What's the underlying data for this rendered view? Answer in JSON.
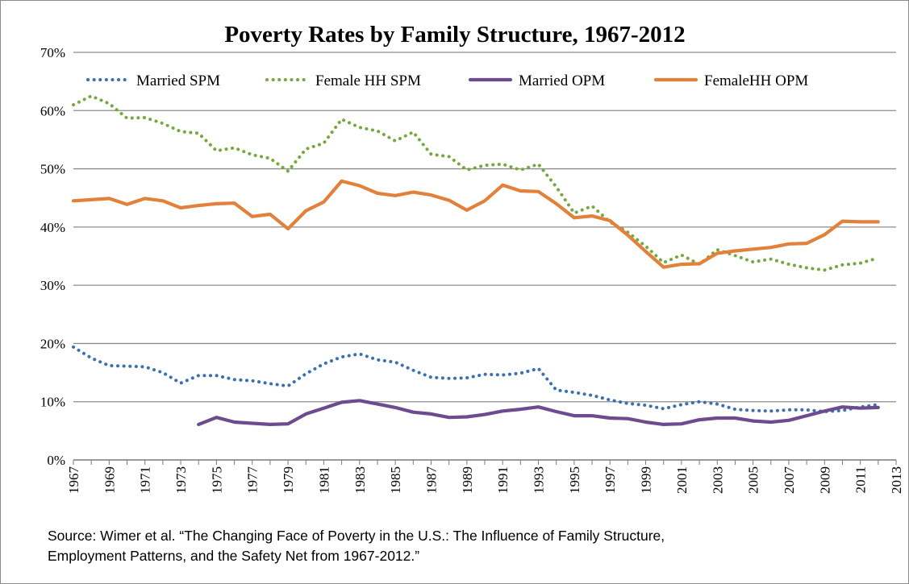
{
  "chart_data": {
    "type": "line",
    "title": "Poverty Rates by Family Structure, 1967-2012",
    "xlabel": "",
    "ylabel": "",
    "ylim": [
      0,
      70
    ],
    "yticks": [
      0,
      10,
      20,
      30,
      40,
      50,
      60,
      70
    ],
    "ytick_labels": [
      "0%",
      "10%",
      "20%",
      "30%",
      "40%",
      "50%",
      "60%",
      "70%"
    ],
    "xlim": [
      1967,
      2013
    ],
    "xticks": [
      1967,
      1969,
      1971,
      1973,
      1975,
      1977,
      1979,
      1981,
      1983,
      1985,
      1987,
      1989,
      1991,
      1993,
      1995,
      1997,
      1999,
      2001,
      2003,
      2005,
      2007,
      2009,
      2011,
      2013
    ],
    "grid": "horizontal",
    "legend_position": "top",
    "series": [
      {
        "name": "Married SPM",
        "style": "dotted",
        "color": "#3a6fb0",
        "x": [
          1967,
          1968,
          1969,
          1970,
          1971,
          1972,
          1973,
          1974,
          1975,
          1976,
          1977,
          1978,
          1979,
          1980,
          1981,
          1982,
          1983,
          1984,
          1985,
          1986,
          1987,
          1988,
          1989,
          1990,
          1991,
          1992,
          1993,
          1994,
          1995,
          1996,
          1997,
          1998,
          1999,
          2000,
          2001,
          2002,
          2003,
          2004,
          2005,
          2006,
          2007,
          2008,
          2009,
          2010,
          2011,
          2012
        ],
        "values": [
          19.4,
          17.5,
          16.2,
          16.1,
          16.0,
          15.0,
          13.2,
          14.5,
          14.5,
          13.8,
          13.6,
          13.1,
          12.7,
          14.8,
          16.5,
          17.7,
          18.2,
          17.2,
          16.8,
          15.4,
          14.2,
          14.0,
          14.1,
          14.7,
          14.6,
          14.9,
          15.7,
          12.0,
          11.6,
          11.1,
          10.3,
          9.7,
          9.4,
          8.8,
          9.5,
          10.0,
          9.6,
          8.7,
          8.5,
          8.4,
          8.6,
          8.6,
          8.3,
          8.5,
          9.1,
          9.5
        ]
      },
      {
        "name": "Female HH SPM",
        "style": "dotted",
        "color": "#77a83f",
        "x": [
          1967,
          1968,
          1969,
          1970,
          1971,
          1972,
          1973,
          1974,
          1975,
          1976,
          1977,
          1978,
          1979,
          1980,
          1981,
          1982,
          1983,
          1984,
          1985,
          1986,
          1987,
          1988,
          1989,
          1990,
          1991,
          1992,
          1993,
          1994,
          1995,
          1996,
          1997,
          1998,
          1999,
          2000,
          2001,
          2002,
          2003,
          2004,
          2005,
          2006,
          2007,
          2008,
          2009,
          2010,
          2011,
          2012
        ],
        "values": [
          61.0,
          62.5,
          61.2,
          58.7,
          58.8,
          57.8,
          56.4,
          56.1,
          53.1,
          53.6,
          52.4,
          51.8,
          49.6,
          53.4,
          54.4,
          58.5,
          57.1,
          56.5,
          54.8,
          56.3,
          52.5,
          52.1,
          49.8,
          50.6,
          50.8,
          49.8,
          50.8,
          46.9,
          42.4,
          43.6,
          40.9,
          39.1,
          36.7,
          33.9,
          35.2,
          33.6,
          36.1,
          35.1,
          34.0,
          34.5,
          33.6,
          33.0,
          32.6,
          33.5,
          33.8,
          34.7
        ]
      },
      {
        "name": "Married OPM",
        "style": "solid",
        "color": "#6d4b8f",
        "x": [
          1974,
          1975,
          1976,
          1977,
          1978,
          1979,
          1980,
          1981,
          1982,
          1983,
          1984,
          1985,
          1986,
          1987,
          1988,
          1989,
          1990,
          1991,
          1992,
          1993,
          1994,
          1995,
          1996,
          1997,
          1998,
          1999,
          2000,
          2001,
          2002,
          2003,
          2004,
          2005,
          2006,
          2007,
          2008,
          2009,
          2010,
          2011,
          2012
        ],
        "values": [
          6.1,
          7.3,
          6.5,
          6.3,
          6.1,
          6.2,
          7.9,
          8.9,
          9.9,
          10.2,
          9.6,
          9.0,
          8.2,
          7.9,
          7.3,
          7.4,
          7.8,
          8.4,
          8.7,
          9.1,
          8.3,
          7.6,
          7.6,
          7.2,
          7.1,
          6.5,
          6.1,
          6.2,
          6.9,
          7.2,
          7.2,
          6.7,
          6.5,
          6.8,
          7.6,
          8.4,
          9.1,
          8.9,
          9.0
        ]
      },
      {
        "name": "FemaleHH OPM",
        "style": "solid",
        "color": "#e1813b",
        "x": [
          1967,
          1968,
          1969,
          1970,
          1971,
          1972,
          1973,
          1974,
          1975,
          1976,
          1977,
          1978,
          1979,
          1980,
          1981,
          1982,
          1983,
          1984,
          1985,
          1986,
          1987,
          1988,
          1989,
          1990,
          1991,
          1992,
          1993,
          1994,
          1995,
          1996,
          1997,
          1998,
          1999,
          2000,
          2001,
          2002,
          2003,
          2004,
          2005,
          2006,
          2007,
          2008,
          2009,
          2010,
          2011,
          2012
        ],
        "values": [
          44.5,
          44.7,
          44.9,
          43.9,
          44.9,
          44.5,
          43.3,
          43.7,
          44.0,
          44.1,
          41.8,
          42.2,
          39.7,
          42.8,
          44.3,
          47.9,
          47.1,
          45.8,
          45.4,
          46.0,
          45.5,
          44.6,
          42.9,
          44.5,
          47.2,
          46.2,
          46.1,
          44.0,
          41.6,
          41.9,
          41.1,
          38.6,
          35.8,
          33.1,
          33.6,
          33.7,
          35.5,
          35.9,
          36.2,
          36.5,
          37.1,
          37.2,
          38.7,
          41.0,
          40.9,
          40.9
        ]
      }
    ]
  },
  "source_note": {
    "line1": "Source: Wimer et al. “The Changing Face of Poverty in the U.S.: The Influence of Family Structure,",
    "line2": "Employment Patterns, and the Safety Net from 1967-2012.”"
  }
}
